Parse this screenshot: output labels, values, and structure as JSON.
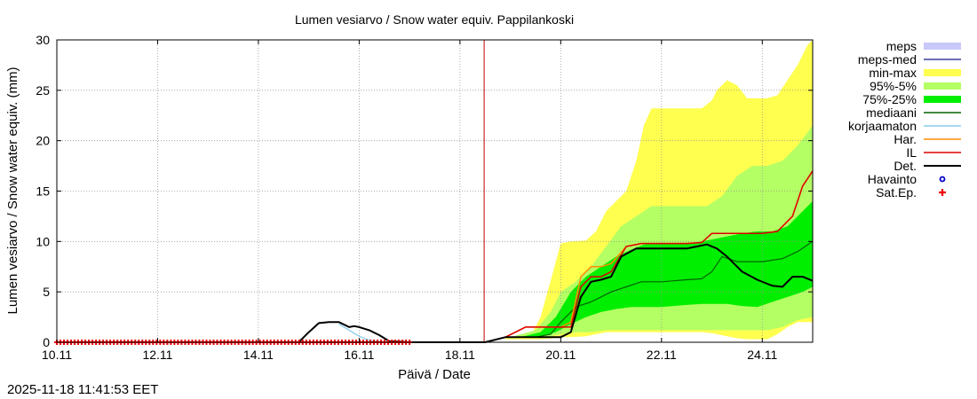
{
  "timestamp": "2025-11-18 11:41:53 EET",
  "chart_data": {
    "type": "area",
    "title": "Lumen vesiarvo / Snow water equiv.  Pappilankoski",
    "xlabel": "Päivä / Date",
    "ylabel": "Lumen vesiarvo / Snow water equiv. (mm)",
    "xlim": [
      0,
      15
    ],
    "ylim": [
      0,
      30
    ],
    "x_ticks": [
      {
        "x": 0,
        "label": "10.11"
      },
      {
        "x": 2,
        "label": "12.11"
      },
      {
        "x": 4,
        "label": "14.11"
      },
      {
        "x": 6,
        "label": "16.11"
      },
      {
        "x": 8,
        "label": "18.11"
      },
      {
        "x": 10,
        "label": "20.11"
      },
      {
        "x": 12,
        "label": "22.11"
      },
      {
        "x": 14,
        "label": "24.11"
      }
    ],
    "y_ticks": [
      0,
      5,
      10,
      15,
      20,
      25,
      30
    ],
    "grid": true,
    "legend_position": "right",
    "forecast_start_x": 8.48,
    "colors": {
      "meps": "#c8c8fa",
      "meps_med": "#3c3ca0",
      "minmax": "#ffff50",
      "p95_5": "#b4ff64",
      "p75_25": "#00ee00",
      "median": "#006400",
      "korjaamaton": "#87ceeb",
      "har": "#ff8c00",
      "il": "#dd0000",
      "det": "#000000",
      "havainto": "#0000cc",
      "satep": "#ee0000",
      "vline": "#c00000"
    },
    "legend": [
      {
        "key": "meps",
        "label": "meps",
        "style": "box"
      },
      {
        "key": "meps_med",
        "label": "meps-med",
        "style": "line"
      },
      {
        "key": "minmax",
        "label": "min-max",
        "style": "box"
      },
      {
        "key": "p95_5",
        "label": "95%-5%",
        "style": "box"
      },
      {
        "key": "p75_25",
        "label": "75%-25%",
        "style": "box"
      },
      {
        "key": "median",
        "label": "mediaani",
        "style": "line"
      },
      {
        "key": "korjaamaton",
        "label": "korjaamaton",
        "style": "line"
      },
      {
        "key": "har",
        "label": "Har.",
        "style": "line"
      },
      {
        "key": "il",
        "label": "IL",
        "style": "line"
      },
      {
        "key": "det",
        "label": "Det.",
        "style": "thickline"
      },
      {
        "key": "havainto",
        "label": "Havainto",
        "style": "circle"
      },
      {
        "key": "satep",
        "label": "Sat.Ep.",
        "style": "plus"
      }
    ],
    "bands": {
      "minmax": {
        "x": [
          8.9,
          9.4,
          9.6,
          9.85,
          10.0,
          10.2,
          10.5,
          10.7,
          10.9,
          11.1,
          11.3,
          11.5,
          11.65,
          11.8,
          12.0,
          12.5,
          12.8,
          13.0,
          13.1,
          13.3,
          13.5,
          13.7,
          13.9,
          14.1,
          14.3,
          14.5,
          14.7,
          14.9,
          15.0
        ],
        "upper": [
          0.5,
          0.6,
          2.5,
          7.0,
          9.8,
          10.0,
          10.1,
          11.0,
          13.0,
          14.0,
          15.0,
          18.0,
          21.5,
          23.2,
          23.2,
          23.2,
          23.2,
          24.0,
          25.0,
          26.0,
          25.5,
          24.2,
          24.2,
          24.2,
          24.5,
          26.0,
          27.5,
          29.5,
          30.0
        ],
        "lower": [
          0.3,
          0.3,
          0.3,
          0.4,
          0.5,
          0.5,
          0.6,
          0.8,
          1.0,
          1.0,
          1.0,
          1.0,
          1.0,
          1.0,
          1.0,
          1.0,
          1.0,
          0.9,
          0.8,
          0.6,
          0.4,
          0.3,
          0.3,
          0.3,
          0.8,
          1.5,
          2.0,
          2.0,
          2.0
        ]
      },
      "p95_5": {
        "x": [
          9.0,
          9.5,
          9.8,
          10.0,
          10.3,
          10.6,
          10.9,
          11.2,
          11.5,
          11.8,
          12.0,
          12.5,
          12.9,
          13.2,
          13.5,
          13.8,
          14.1,
          14.4,
          14.7,
          15.0
        ],
        "upper": [
          0.5,
          1.2,
          3.0,
          5.0,
          6.0,
          7.5,
          9.5,
          11.5,
          12.5,
          13.5,
          13.5,
          13.5,
          13.5,
          14.5,
          16.5,
          17.5,
          17.5,
          18.0,
          19.5,
          21.5
        ],
        "lower": [
          0.4,
          0.5,
          0.6,
          0.8,
          1.0,
          1.0,
          1.2,
          1.2,
          1.2,
          1.2,
          1.2,
          1.2,
          1.2,
          1.2,
          1.2,
          1.2,
          1.2,
          1.5,
          2.2,
          2.5
        ]
      },
      "p75_25": {
        "x": [
          9.2,
          9.6,
          9.9,
          10.2,
          10.5,
          10.8,
          11.1,
          11.4,
          11.7,
          12.0,
          12.5,
          12.8,
          13.0,
          13.3,
          13.6,
          13.9,
          14.2,
          14.5,
          14.8,
          15.0
        ],
        "upper": [
          0.5,
          1.0,
          2.5,
          5.0,
          6.5,
          7.5,
          8.5,
          9.2,
          9.8,
          9.8,
          9.8,
          10.0,
          10.2,
          10.5,
          10.8,
          11.0,
          11.0,
          11.5,
          13.0,
          14.0
        ],
        "lower": [
          0.5,
          0.6,
          1.0,
          1.8,
          2.5,
          3.0,
          3.3,
          3.5,
          3.5,
          3.5,
          3.7,
          3.8,
          3.8,
          3.8,
          3.6,
          3.5,
          4.0,
          4.5,
          5.0,
          5.5
        ]
      }
    },
    "series": [
      {
        "key": "korjaamaton",
        "name": "korjaamaton",
        "x": [
          5.6,
          5.8,
          6.0,
          6.2,
          6.4,
          6.6,
          6.8,
          7.0
        ],
        "y": [
          1.8,
          1.2,
          0.6,
          0.2,
          0.05,
          0.0,
          0.0,
          0.0
        ]
      },
      {
        "key": "median",
        "name": "mediaani",
        "x": [
          9.0,
          9.5,
          9.8,
          10.0,
          10.3,
          10.6,
          10.8,
          11.0,
          11.3,
          11.6,
          12.0,
          12.5,
          12.8,
          13.0,
          13.2,
          13.5,
          14.0,
          14.4,
          14.7,
          15.0
        ],
        "y": [
          0.5,
          0.5,
          0.8,
          2.0,
          3.5,
          4.0,
          4.5,
          5.0,
          5.5,
          6.0,
          6.0,
          6.2,
          6.3,
          7.0,
          8.5,
          8.0,
          8.0,
          8.3,
          9.0,
          10.0
        ]
      },
      {
        "key": "har",
        "name": "Har.",
        "x": [
          8.5,
          8.9,
          9.3,
          10.0,
          10.2,
          10.4,
          10.6,
          10.8,
          11.0,
          11.3,
          11.6,
          12.0,
          12.5,
          12.8,
          13.0,
          14.0,
          14.3,
          14.6,
          14.8,
          15.0
        ],
        "y": [
          0.0,
          0.5,
          1.5,
          1.5,
          2.0,
          6.5,
          7.5,
          7.5,
          7.8,
          9.5,
          9.8,
          9.8,
          9.8,
          9.9,
          10.8,
          10.8,
          11.0,
          12.5,
          15.5,
          17.0
        ]
      },
      {
        "key": "il",
        "name": "IL",
        "x": [
          8.5,
          8.9,
          9.3,
          10.0,
          10.2,
          10.4,
          10.6,
          10.8,
          11.0,
          11.3,
          11.6,
          12.0,
          12.5,
          12.8,
          13.0,
          14.0,
          14.3,
          14.6,
          14.8,
          15.0
        ],
        "y": [
          0.0,
          0.5,
          1.5,
          1.5,
          1.5,
          5.5,
          6.5,
          6.5,
          7.0,
          9.5,
          9.8,
          9.8,
          9.8,
          9.9,
          10.8,
          10.8,
          11.0,
          12.5,
          15.5,
          17.0
        ]
      },
      {
        "key": "det",
        "name": "Det.",
        "x": [
          0,
          4.8,
          5.0,
          5.2,
          5.4,
          5.6,
          5.8,
          5.9,
          6.0,
          6.2,
          6.4,
          6.6,
          6.8,
          7.0,
          7.5,
          8.0,
          8.5,
          8.9,
          9.3,
          9.7,
          10.0,
          10.2,
          10.4,
          10.6,
          10.8,
          11.0,
          11.2,
          11.5,
          12.0,
          12.5,
          12.7,
          12.9,
          13.1,
          13.3,
          13.6,
          13.9,
          14.2,
          14.4,
          14.6,
          14.8,
          15.0
        ],
        "y": [
          0.0,
          0.0,
          1.0,
          1.9,
          2.0,
          2.0,
          1.5,
          1.6,
          1.5,
          1.2,
          0.7,
          0.1,
          0.05,
          0.0,
          0.0,
          0.0,
          0.0,
          0.5,
          0.5,
          0.5,
          0.5,
          1.0,
          4.5,
          6.0,
          6.2,
          6.5,
          8.5,
          9.3,
          9.3,
          9.3,
          9.5,
          9.7,
          9.3,
          8.5,
          7.0,
          6.2,
          5.6,
          5.5,
          6.5,
          6.5,
          6.1
        ]
      },
      {
        "key": "satep",
        "name": "Sat.Ep.",
        "x": [
          0,
          7.0
        ],
        "y": [
          0,
          0
        ]
      }
    ]
  }
}
